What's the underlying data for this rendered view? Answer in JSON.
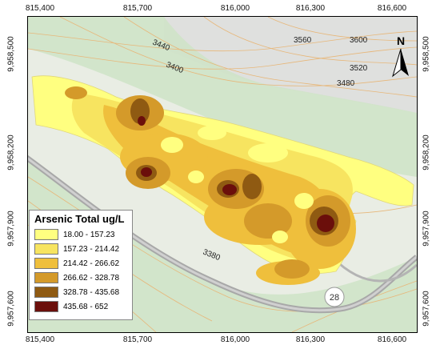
{
  "axes": {
    "top_ticks": [
      "815,400",
      "815,700",
      "816,000",
      "816,300",
      "816,600"
    ],
    "bottom_ticks": [
      "815,400",
      "815,700",
      "816,000",
      "816,300",
      "816,600"
    ],
    "left_ticks": [
      "9,958,500",
      "9,958,200",
      "9,957,900",
      "9,957,600"
    ],
    "right_ticks": [
      "9,958,500",
      "9,958,200",
      "9,957,900",
      "9,957,600"
    ]
  },
  "north_arrow": {
    "label": "N"
  },
  "contour_labels": [
    "3440",
    "3400",
    "3560",
    "3600",
    "3520",
    "3480",
    "3380"
  ],
  "road_label": "28",
  "legend": {
    "title": "Arsenic Total ug/L",
    "classes": [
      {
        "label": "18.00 - 157.23",
        "color": "#ffff80"
      },
      {
        "label": "157.23 - 214.42",
        "color": "#f7e460"
      },
      {
        "label": "214.42 - 266.62",
        "color": "#efbf3c"
      },
      {
        "label": "266.62 - 328.78",
        "color": "#d49a2a"
      },
      {
        "label": "328.78 - 435.68",
        "color": "#8f5a12"
      },
      {
        "label": "435.68 - 652",
        "color": "#6b0f0b"
      }
    ]
  }
}
